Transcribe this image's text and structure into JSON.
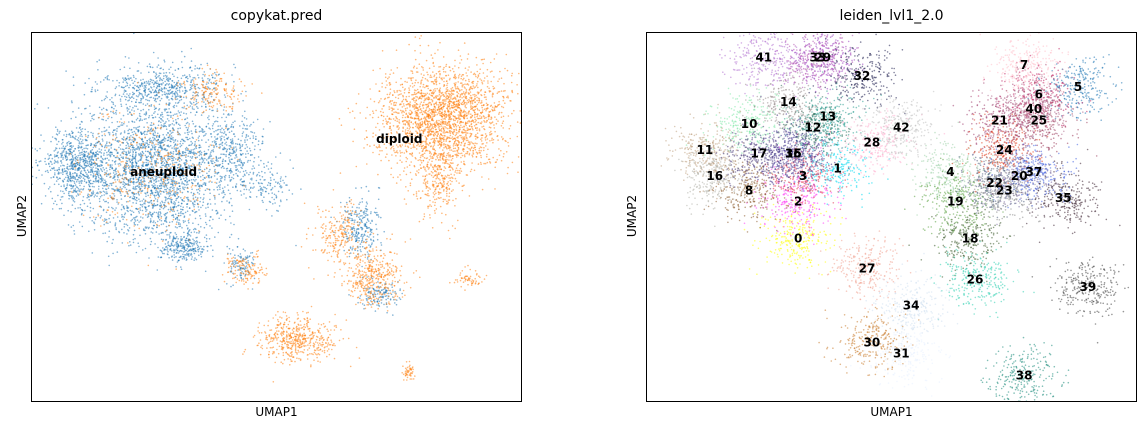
{
  "chart_data": [
    {
      "type": "scatter",
      "title": "copykat.pred",
      "xlabel": "UMAP1",
      "ylabel": "UMAP2",
      "grid": false,
      "legend": "on-data labels",
      "xlim": [
        0,
        100
      ],
      "ylim": [
        0,
        100
      ],
      "series": [
        {
          "name": "aneuploid",
          "color": "#1f77b4",
          "label_at": [
            27,
            62
          ],
          "regions": [
            {
              "cx": 25,
              "cy": 63,
              "rx": 16,
              "ry": 19,
              "n": 2600
            },
            {
              "cx": 9,
              "cy": 64,
              "rx": 7,
              "ry": 9,
              "n": 600
            },
            {
              "cx": 27,
              "cy": 85,
              "rx": 11,
              "ry": 6,
              "n": 500
            },
            {
              "cx": 41,
              "cy": 69,
              "rx": 6,
              "ry": 10,
              "n": 300
            },
            {
              "cx": 31,
              "cy": 42,
              "rx": 5,
              "ry": 4,
              "n": 250
            },
            {
              "cx": 48,
              "cy": 58,
              "rx": 6,
              "ry": 5,
              "n": 120
            },
            {
              "cx": 67,
              "cy": 47,
              "rx": 4,
              "ry": 8,
              "n": 250
            },
            {
              "cx": 71,
              "cy": 29,
              "rx": 4,
              "ry": 4,
              "n": 130
            },
            {
              "cx": 43,
              "cy": 37,
              "rx": 2.5,
              "ry": 5,
              "n": 100
            }
          ]
        },
        {
          "name": "diploid",
          "color": "#ff7f0e",
          "label_at": [
            75,
            71
          ],
          "regions": [
            {
              "cx": 84,
              "cy": 77,
              "rx": 13,
              "ry": 14,
              "n": 2200
            },
            {
              "cx": 83,
              "cy": 60,
              "rx": 5,
              "ry": 10,
              "n": 300
            },
            {
              "cx": 70,
              "cy": 34,
              "rx": 6,
              "ry": 8,
              "n": 400
            },
            {
              "cx": 54,
              "cy": 17,
              "rx": 8,
              "ry": 6,
              "n": 500
            },
            {
              "cx": 63,
              "cy": 46,
              "rx": 5,
              "ry": 8,
              "n": 220
            },
            {
              "cx": 44,
              "cy": 36,
              "rx": 4,
              "ry": 4,
              "n": 130
            },
            {
              "cx": 24,
              "cy": 62,
              "rx": 14,
              "ry": 16,
              "n": 350
            },
            {
              "cx": 37,
              "cy": 84,
              "rx": 7,
              "ry": 5,
              "n": 160
            },
            {
              "cx": 89,
              "cy": 33,
              "rx": 3,
              "ry": 2.5,
              "n": 60
            },
            {
              "cx": 77,
              "cy": 8,
              "rx": 1,
              "ry": 2.5,
              "n": 50
            }
          ]
        }
      ]
    },
    {
      "type": "scatter",
      "title": "leiden_lvl1_2.0",
      "xlabel": "UMAP1",
      "ylabel": "UMAP2",
      "grid": false,
      "legend": "on-data labels",
      "xlim": [
        0,
        100
      ],
      "ylim": [
        0,
        100
      ],
      "clusters": [
        {
          "label": "0",
          "x": 31,
          "y": 44,
          "color": "#ffff00"
        },
        {
          "label": "1",
          "x": 39,
          "y": 63,
          "color": "#00d8f0"
        },
        {
          "label": "2",
          "x": 31,
          "y": 54,
          "color": "#ff3df5"
        },
        {
          "label": "3",
          "x": 32,
          "y": 61,
          "color": "#e0304a"
        },
        {
          "label": "4",
          "x": 62,
          "y": 62,
          "color": "#9cd2a8"
        },
        {
          "label": "5",
          "x": 88,
          "y": 85,
          "color": "#1f77b4"
        },
        {
          "label": "6",
          "x": 80,
          "y": 83,
          "color": "#c02060"
        },
        {
          "label": "7",
          "x": 77,
          "y": 91,
          "color": "#ffc0cb"
        },
        {
          "label": "8",
          "x": 21,
          "y": 57,
          "color": "#8b5a2b"
        },
        {
          "label": "10",
          "x": 21,
          "y": 75,
          "color": "#7fe8a8"
        },
        {
          "label": "11",
          "x": 12,
          "y": 68,
          "color": "#c0a080"
        },
        {
          "label": "12",
          "x": 34,
          "y": 74,
          "color": "#2e6b5a"
        },
        {
          "label": "13",
          "x": 37,
          "y": 77,
          "color": "#2a9d8f"
        },
        {
          "label": "14",
          "x": 29,
          "y": 81,
          "color": "#9a8f8f"
        },
        {
          "label": "15",
          "x": 30,
          "y": 67,
          "color": "#3a2a8a"
        },
        {
          "label": "16",
          "x": 14,
          "y": 61,
          "color": "#b0b0a8"
        },
        {
          "label": "17",
          "x": 23,
          "y": 67,
          "color": "#4a3a7a"
        },
        {
          "label": "18",
          "x": 66,
          "y": 44,
          "color": "#3a5a2a"
        },
        {
          "label": "19",
          "x": 63,
          "y": 54,
          "color": "#5aa040"
        },
        {
          "label": "20",
          "x": 76,
          "y": 61,
          "color": "#7a6aa0"
        },
        {
          "label": "21",
          "x": 72,
          "y": 76,
          "color": "#a04070"
        },
        {
          "label": "22",
          "x": 71,
          "y": 59,
          "color": "#506080"
        },
        {
          "label": "23",
          "x": 73,
          "y": 57,
          "color": "#8a8a8a"
        },
        {
          "label": "24",
          "x": 73,
          "y": 68,
          "color": "#e04020"
        },
        {
          "label": "25",
          "x": 80,
          "y": 76,
          "color": "#9a3a5a"
        },
        {
          "label": "26",
          "x": 67,
          "y": 33,
          "color": "#30d0b0"
        },
        {
          "label": "27",
          "x": 45,
          "y": 36,
          "color": "#f0a090"
        },
        {
          "label": "28",
          "x": 46,
          "y": 70,
          "color": "#ffb0d0"
        },
        {
          "label": "29",
          "x": 36,
          "y": 93,
          "color": "#9a40c0"
        },
        {
          "label": "30",
          "x": 46,
          "y": 16,
          "color": "#c87a2a"
        },
        {
          "label": "31",
          "x": 52,
          "y": 13,
          "color": "#e8f0ff"
        },
        {
          "label": "32",
          "x": 44,
          "y": 88,
          "color": "#1a1a4a"
        },
        {
          "label": "33",
          "x": 35,
          "y": 93,
          "color": "#b050b0"
        },
        {
          "label": "34",
          "x": 54,
          "y": 26,
          "color": "#cfe0f0"
        },
        {
          "label": "35",
          "x": 85,
          "y": 55,
          "color": "#3a2030"
        },
        {
          "label": "36",
          "x": 30,
          "y": 67,
          "color": "#6050a0"
        },
        {
          "label": "37",
          "x": 79,
          "y": 62,
          "color": "#4060e0"
        },
        {
          "label": "38",
          "x": 77,
          "y": 7,
          "color": "#1a8a7a"
        },
        {
          "label": "39",
          "x": 90,
          "y": 31,
          "color": "#404040"
        },
        {
          "label": "40",
          "x": 79,
          "y": 79,
          "color": "#b07090"
        },
        {
          "label": "41",
          "x": 24,
          "y": 93,
          "color": "#b070d0"
        },
        {
          "label": "42",
          "x": 52,
          "y": 74,
          "color": "#c0c0c0"
        }
      ]
    }
  ]
}
